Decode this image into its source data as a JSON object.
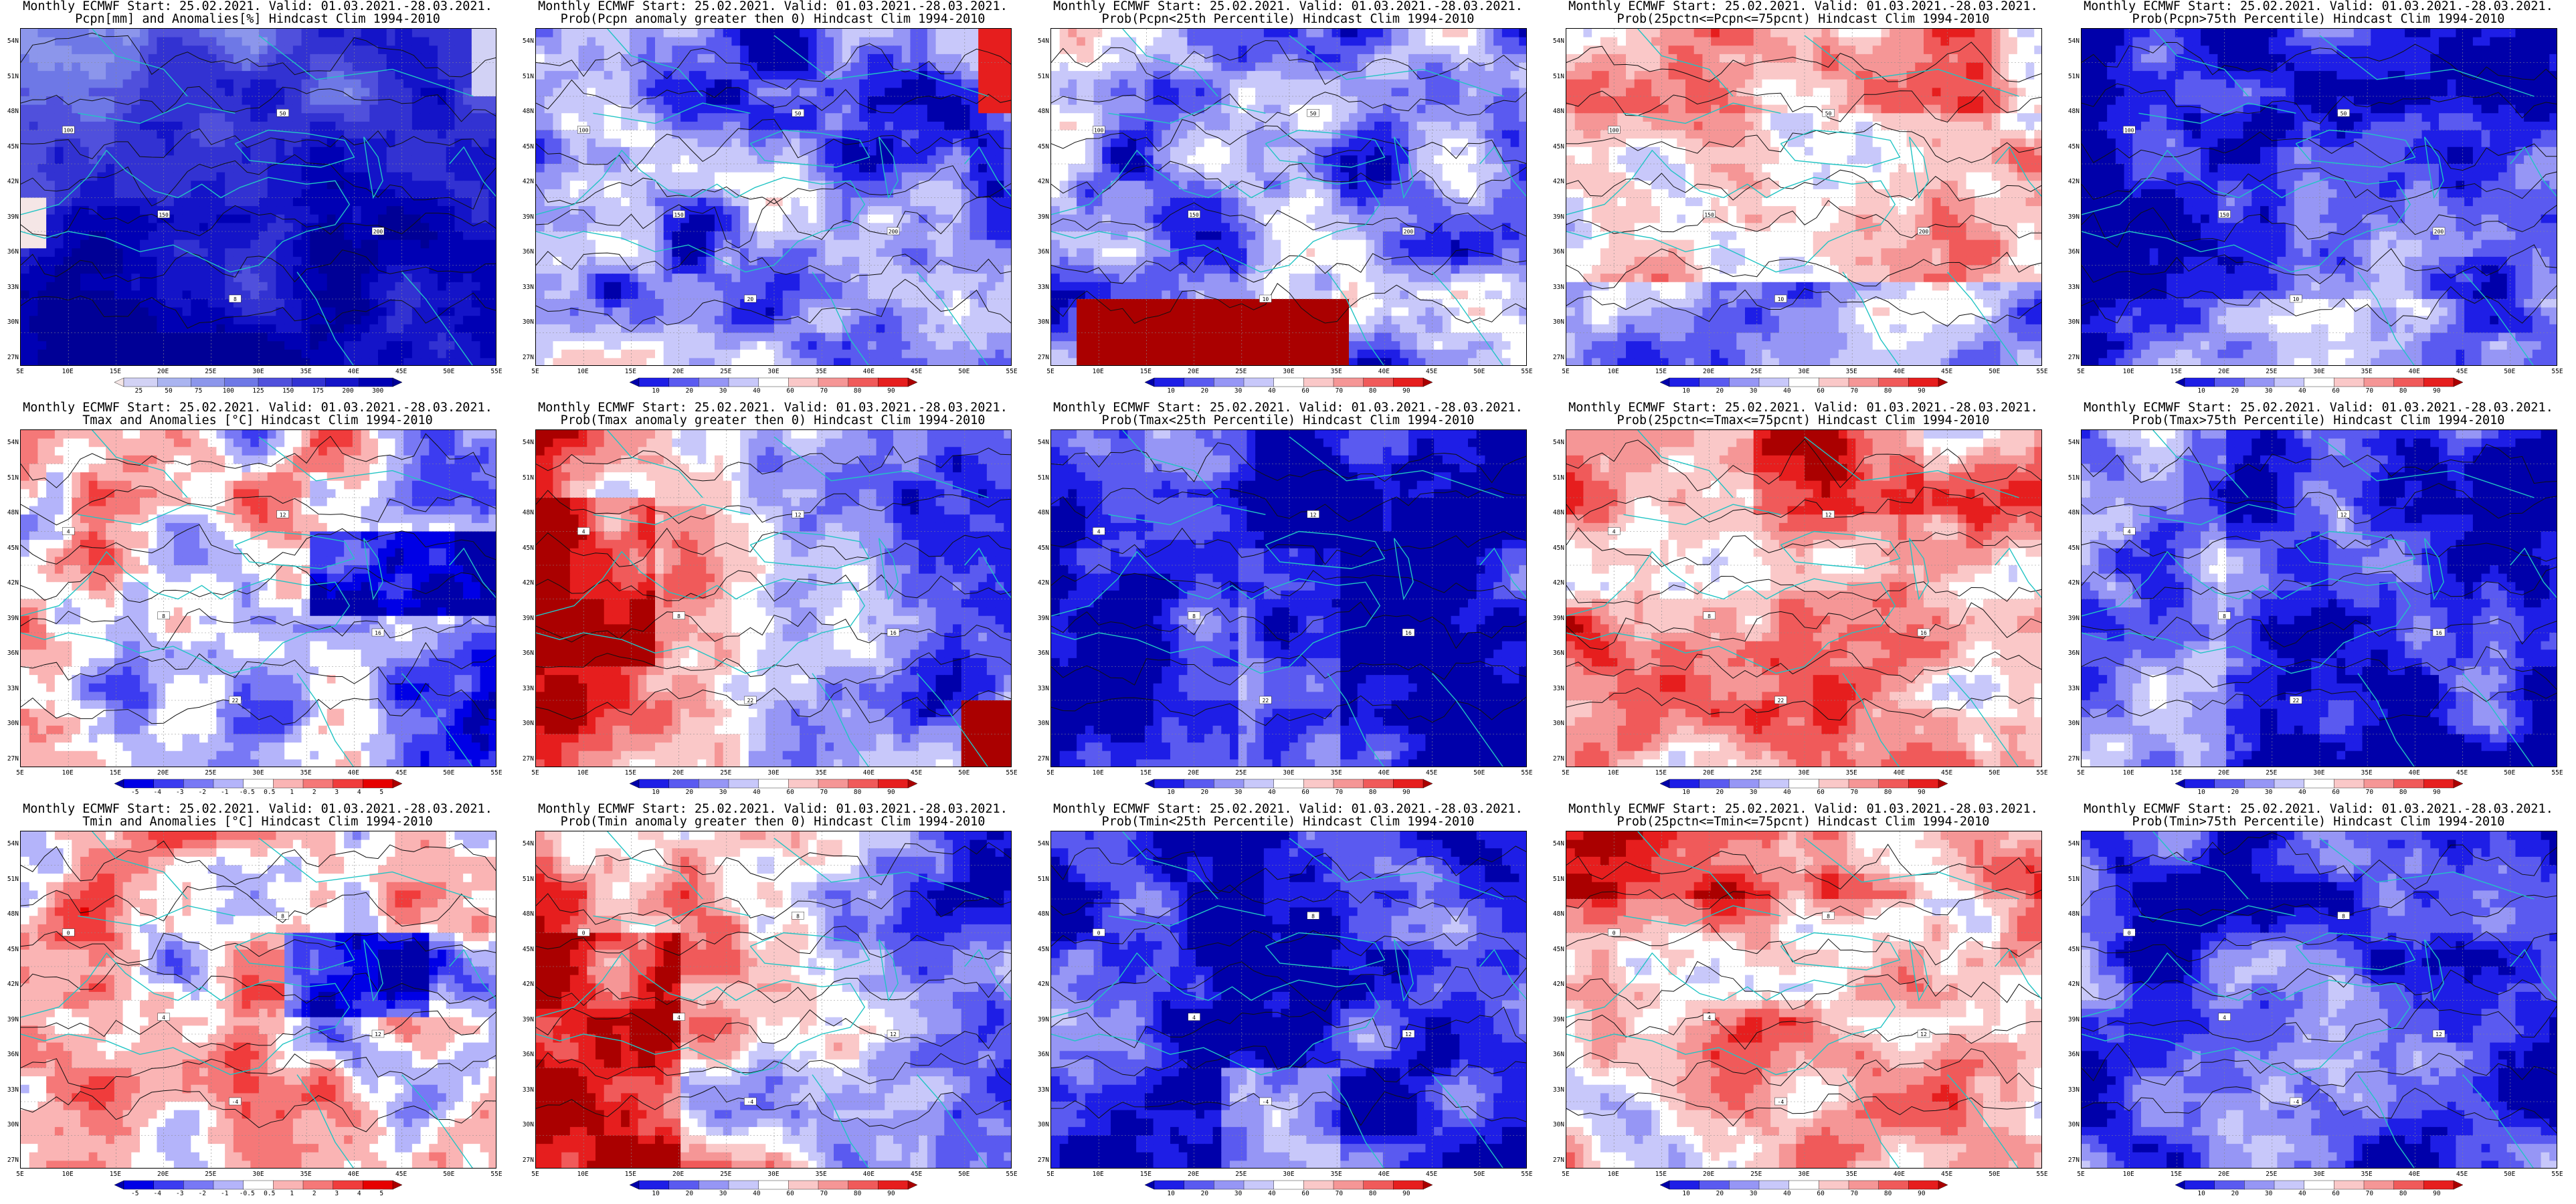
{
  "palettes": {
    "precip_anom": [
      "#f5e6e6",
      "#d2d2f5",
      "#aab4f0",
      "#8c96eb",
      "#6e78e6",
      "#5050dc",
      "#3232d2",
      "#1414c8",
      "#0000b4",
      "#000096"
    ],
    "anom_div": [
      "#0000aa",
      "#0000e6",
      "#3c3cf0",
      "#7878f5",
      "#b4b4fa",
      "#ffffff",
      "#fab4b4",
      "#f57878",
      "#f03c3c",
      "#e60000",
      "#aa0000"
    ],
    "prob": [
      "#0000aa",
      "#1e1ee6",
      "#5a5af0",
      "#9696f5",
      "#c8c8fa",
      "#ffffff",
      "#fac8c8",
      "#f59696",
      "#f05a5a",
      "#e61e1e",
      "#aa0000"
    ],
    "coast": "#22c4c4",
    "contour": "#111111"
  },
  "map_axes": {
    "lat_labels": [
      "54N",
      "51N",
      "48N",
      "45N",
      "42N",
      "39N",
      "36N",
      "33N",
      "30N",
      "27N"
    ],
    "lon_labels": [
      "5E",
      "10E",
      "15E",
      "20E",
      "25E",
      "30E",
      "35E",
      "40E",
      "45E",
      "50E",
      "55E"
    ]
  },
  "panels": [
    {
      "title1": "Monthly ECMWF Start: 25.02.2021. Valid: 01.03.2021.-28.03.2021.",
      "title2": "Pcpn[mm] and Anomalies[%] Hindcast Clim 1994-2010",
      "field": "precip",
      "cbar": "precip_anom",
      "ticks": [
        "25",
        "50",
        "75",
        "100",
        "125",
        "150",
        "175",
        "200",
        "300"
      ],
      "contour_labels": [
        "100",
        "150",
        "50",
        "200",
        "8"
      ]
    },
    {
      "title1": "Monthly ECMWF Start: 25.02.2021. Valid: 01.03.2021.-28.03.2021.",
      "title2": "Prob(Pcpn anomaly greater then 0) Hindcast Clim 1994-2010",
      "field": "prob_precip_pos",
      "cbar": "prob",
      "ticks": [
        "10",
        "20",
        "30",
        "40",
        "60",
        "70",
        "80",
        "90"
      ],
      "contour_labels": [
        "100",
        "150",
        "50",
        "200",
        "20"
      ]
    },
    {
      "title1": "Monthly ECMWF Start: 25.02.2021. Valid: 01.03.2021.-28.03.2021.",
      "title2": "Prob(Pcpn<25th Percentile) Hindcast Clim 1994-2010",
      "field": "prob_precip_low",
      "cbar": "prob",
      "ticks": [
        "10",
        "20",
        "30",
        "40",
        "60",
        "70",
        "80",
        "90"
      ],
      "contour_labels": [
        "100",
        "150",
        "50",
        "200",
        "10"
      ]
    },
    {
      "title1": "Monthly ECMWF Start: 25.02.2021. Valid: 01.03.2021.-28.03.2021.",
      "title2": "Prob(25pctn<=Pcpn<=75pcnt) Hindcast Clim 1994-2010",
      "field": "prob_precip_mid",
      "cbar": "prob",
      "ticks": [
        "10",
        "20",
        "30",
        "40",
        "60",
        "70",
        "80",
        "90"
      ],
      "contour_labels": [
        "100",
        "150",
        "50",
        "200",
        "10"
      ]
    },
    {
      "title1": "Monthly ECMWF Start: 25.02.2021. Valid: 01.03.2021.-28.03.2021.",
      "title2": "Prob(Pcpn>75th Percentile) Hindcast Clim 1994-2010",
      "field": "prob_precip_high",
      "cbar": "prob",
      "ticks": [
        "10",
        "20",
        "30",
        "40",
        "60",
        "70",
        "80",
        "90"
      ],
      "contour_labels": [
        "100",
        "150",
        "50",
        "200",
        "10"
      ]
    },
    {
      "title1": "Monthly ECMWF Start: 25.02.2021. Valid: 01.03.2021.-28.03.2021.",
      "title2": "Tmax and Anomalies [°C] Hindcast Clim 1994-2010",
      "field": "tmax",
      "cbar": "anom_div",
      "ticks": [
        "-5",
        "-4",
        "-3",
        "-2",
        "-1",
        "-0.5",
        "0.5",
        "1",
        "2",
        "3",
        "4",
        "5"
      ],
      "contour_labels": [
        "4",
        "8",
        "12",
        "16",
        "22"
      ]
    },
    {
      "title1": "Monthly ECMWF Start: 25.02.2021. Valid: 01.03.2021.-28.03.2021.",
      "title2": "Prob(Tmax anomaly greater then 0) Hindcast Clim 1994-2010",
      "field": "prob_tmax_pos",
      "cbar": "prob",
      "ticks": [
        "10",
        "20",
        "30",
        "40",
        "60",
        "70",
        "80",
        "90"
      ],
      "contour_labels": [
        "4",
        "8",
        "12",
        "16",
        "22"
      ]
    },
    {
      "title1": "Monthly ECMWF Start: 25.02.2021. Valid: 01.03.2021.-28.03.2021.",
      "title2": "Prob(Tmax<25th Percentile) Hindcast Clim 1994-2010",
      "field": "prob_tmax_low",
      "cbar": "prob",
      "ticks": [
        "10",
        "20",
        "30",
        "40",
        "60",
        "70",
        "80",
        "90"
      ],
      "contour_labels": [
        "4",
        "8",
        "12",
        "16",
        "22"
      ]
    },
    {
      "title1": "Monthly ECMWF Start: 25.02.2021. Valid: 01.03.2021.-28.03.2021.",
      "title2": "Prob(25pctn<=Tmax<=75pcnt) Hindcast Clim 1994-2010",
      "field": "prob_tmax_mid",
      "cbar": "prob",
      "ticks": [
        "10",
        "20",
        "30",
        "40",
        "60",
        "70",
        "80",
        "90"
      ],
      "contour_labels": [
        "4",
        "8",
        "12",
        "16",
        "22"
      ]
    },
    {
      "title1": "Monthly ECMWF Start: 25.02.2021. Valid: 01.03.2021.-28.03.2021.",
      "title2": "Prob(Tmax>75th Percentile) Hindcast Clim 1994-2010",
      "field": "prob_tmax_high",
      "cbar": "prob",
      "ticks": [
        "10",
        "20",
        "30",
        "40",
        "60",
        "70",
        "80",
        "90"
      ],
      "contour_labels": [
        "4",
        "8",
        "12",
        "16",
        "22"
      ]
    },
    {
      "title1": "Monthly ECMWF Start: 25.02.2021. Valid: 01.03.2021.-28.03.2021.",
      "title2": "Tmin and Anomalies [°C] Hindcast Clim 1994-2010",
      "field": "tmin",
      "cbar": "anom_div",
      "ticks": [
        "-5",
        "-4",
        "-3",
        "-2",
        "-1",
        "-0.5",
        "0.5",
        "1",
        "2",
        "3",
        "4",
        "5"
      ],
      "contour_labels": [
        "0",
        "4",
        "8",
        "12",
        "-4"
      ]
    },
    {
      "title1": "Monthly ECMWF Start: 25.02.2021. Valid: 01.03.2021.-28.03.2021.",
      "title2": "Prob(Tmin anomaly greater then 0) Hindcast Clim 1994-2010",
      "field": "prob_tmin_pos",
      "cbar": "prob",
      "ticks": [
        "10",
        "20",
        "30",
        "40",
        "60",
        "70",
        "80",
        "90"
      ],
      "contour_labels": [
        "0",
        "4",
        "8",
        "12",
        "-4"
      ]
    },
    {
      "title1": "Monthly ECMWF Start: 25.02.2021. Valid: 01.03.2021.-28.03.2021.",
      "title2": "Prob(Tmin<25th Percentile) Hindcast Clim 1994-2010",
      "field": "prob_tmin_low",
      "cbar": "prob",
      "ticks": [
        "10",
        "20",
        "30",
        "40",
        "60",
        "70",
        "80",
        "90"
      ],
      "contour_labels": [
        "0",
        "4",
        "8",
        "12",
        "-4"
      ]
    },
    {
      "title1": "Monthly ECMWF Start: 25.02.2021. Valid: 01.03.2021.-28.03.2021.",
      "title2": "Prob(25pctn<=Tmin<=75pcnt) Hindcast Clim 1994-2010",
      "field": "prob_tmin_mid",
      "cbar": "prob",
      "ticks": [
        "10",
        "20",
        "30",
        "40",
        "60",
        "70",
        "80",
        "90"
      ],
      "contour_labels": [
        "0",
        "4",
        "8",
        "12",
        "-4"
      ]
    },
    {
      "title1": "Monthly ECMWF Start: 25.02.2021. Valid: 01.03.2021.-28.03.2021.",
      "title2": "Prob(Tmin>75th Percentile) Hindcast Clim 1994-2010",
      "field": "prob_tmin_high",
      "cbar": "prob",
      "ticks": [
        "10",
        "20",
        "30",
        "40",
        "60",
        "70",
        "80",
        "90"
      ],
      "contour_labels": [
        "0",
        "4",
        "8",
        "12",
        "-4"
      ]
    }
  ]
}
